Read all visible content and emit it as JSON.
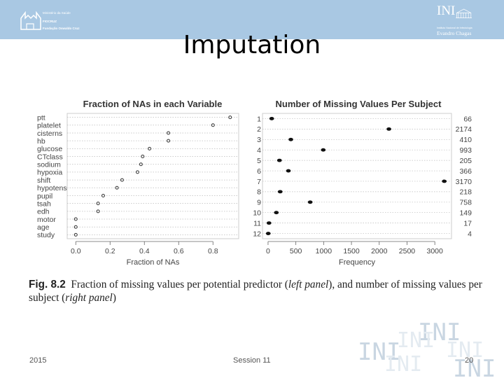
{
  "header": {
    "ministry_line1": "Ministério da Saúde",
    "ministry_line2": "FIOCRUZ",
    "ministry_line3": "Fundação Oswaldo Cruz",
    "ini_logo_text": "INI",
    "ini_subtitle_line1": "Instituto Nacional de Infectologia",
    "ini_subtitle_line2": "Evandro Chagas"
  },
  "slide": {
    "title": "Imputation"
  },
  "chart_data": [
    {
      "type": "scatter",
      "title": "Fraction of NAs in each Variable",
      "xlabel": "Fraction of NAs",
      "ylabel": "",
      "xlim": [
        -0.05,
        0.95
      ],
      "xticks": [
        "0.0",
        "0.2",
        "0.4",
        "0.6",
        "0.8"
      ],
      "grid": "dotted horizontal",
      "categories": [
        "ptt",
        "platelet",
        "cisterns",
        "hb",
        "glucose",
        "CTclass",
        "sodium",
        "hypoxia",
        "shift",
        "hypotens",
        "pupil",
        "tsah",
        "edh",
        "motor",
        "age",
        "study"
      ],
      "values": [
        0.9,
        0.8,
        0.54,
        0.54,
        0.43,
        0.39,
        0.38,
        0.36,
        0.27,
        0.24,
        0.16,
        0.13,
        0.13,
        0.0,
        0.0,
        0.0
      ]
    },
    {
      "type": "scatter",
      "title": "Number of Missing Values Per Subject",
      "xlabel": "Frequency",
      "ylabel": "",
      "xlim": [
        -100,
        3300
      ],
      "xticks": [
        "0",
        "500",
        "1000",
        "1500",
        "2000",
        "2500",
        "3000"
      ],
      "grid": "dotted horizontal",
      "categories": [
        "1",
        "2",
        "3",
        "4",
        "5",
        "6",
        "7",
        "8",
        "9",
        "10",
        "11",
        "12"
      ],
      "values": [
        66,
        2174,
        410,
        993,
        205,
        366,
        3170,
        218,
        758,
        149,
        17,
        4
      ],
      "value_labels": [
        "66",
        "2174",
        "410",
        "993",
        "205",
        "366",
        "3170",
        "218",
        "758",
        "149",
        "17",
        "4"
      ]
    }
  ],
  "caption": {
    "label": "Fig. 8.2",
    "text_a": "Fraction of missing values per potential predictor (",
    "text_b": "left panel",
    "text_c": "), and number of missing values per subject (",
    "text_d": "right panel",
    "text_e": ")"
  },
  "watermark": {
    "text": "INI"
  },
  "footer": {
    "left": "2015",
    "center": "Session 11",
    "right": "20"
  },
  "colors": {
    "header": "#a9c8e3",
    "points": "#111111",
    "panel_border": "#cccccc"
  }
}
